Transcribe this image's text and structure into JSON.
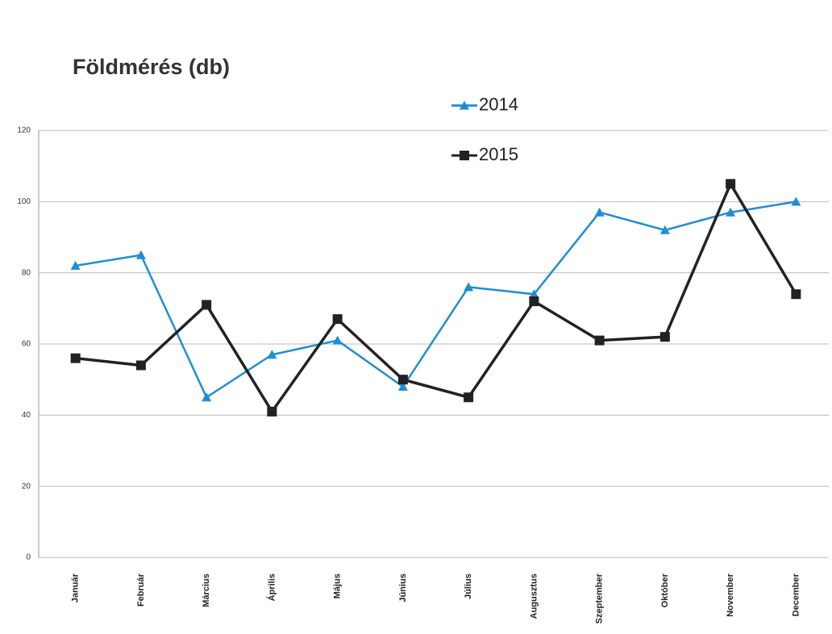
{
  "chart_data": {
    "type": "line",
    "title": "Földmérés (db)",
    "categories": [
      "Január",
      "Február",
      "Március",
      "Április",
      "Május",
      "Június",
      "Július",
      "Augusztus",
      "Szeptember",
      "Október",
      "November",
      "December"
    ],
    "series": [
      {
        "name": "2014",
        "color": "#1f8dd6",
        "marker": "triangle",
        "values": [
          82,
          85,
          45,
          57,
          61,
          48,
          76,
          74,
          97,
          92,
          97,
          100
        ]
      },
      {
        "name": "2015",
        "color": "#222222",
        "marker": "square",
        "values": [
          56,
          54,
          71,
          41,
          67,
          50,
          45,
          72,
          61,
          62,
          105,
          74
        ]
      }
    ],
    "ylim": [
      0,
      120
    ],
    "yticks": [
      0,
      20,
      40,
      60,
      80,
      100,
      120
    ],
    "grid": true
  }
}
